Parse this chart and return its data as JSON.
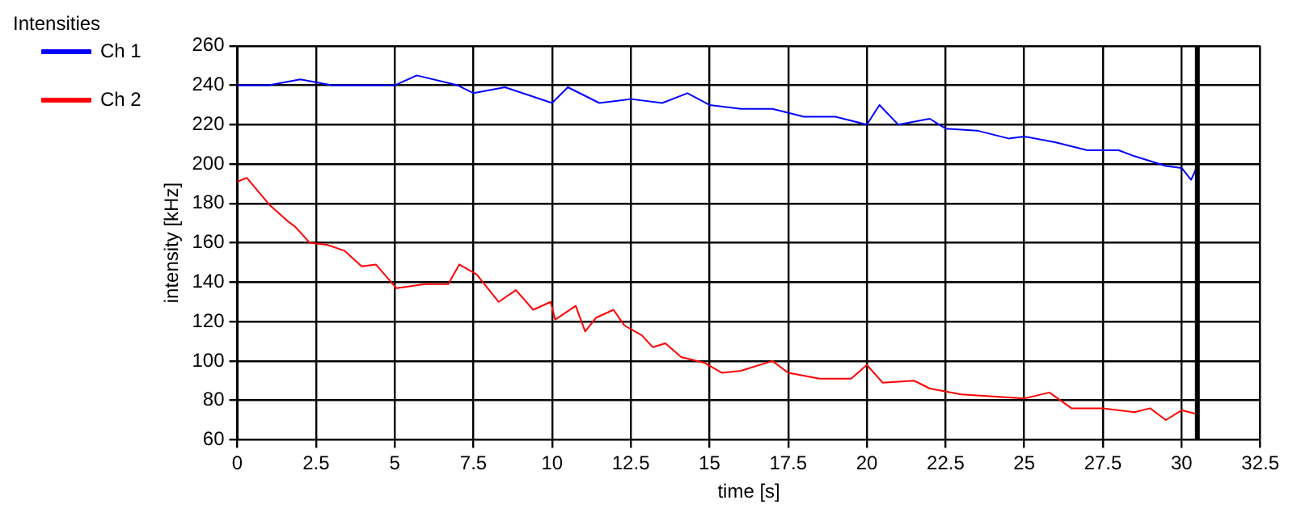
{
  "chart_data": {
    "type": "line",
    "title": "Intensities",
    "xlabel": "time [s]",
    "ylabel": "intensity [kHz]",
    "xlim": [
      0,
      32.5
    ],
    "xticks": [
      0,
      2.5,
      5,
      7.5,
      10,
      12.5,
      15,
      17.5,
      20,
      22.5,
      25,
      27.5,
      30,
      32.5
    ],
    "ylim": [
      60,
      260
    ],
    "yticks": [
      60,
      80,
      100,
      120,
      140,
      160,
      180,
      200,
      220,
      240,
      260
    ],
    "grid": true,
    "legend": "top left",
    "marker": "none",
    "line_style": "solid",
    "ref_lines": [
      {
        "axis": "x",
        "value": 30.5,
        "color": "#000000"
      }
    ],
    "series": [
      {
        "name": "Ch 1",
        "color": "#0000ff",
        "x": [
          0,
          1,
          2,
          3,
          5,
          5.7,
          7,
          7.5,
          8.5,
          10,
          10.5,
          11.5,
          12.5,
          13.5,
          14.3,
          15,
          16,
          17,
          18,
          19,
          20,
          20.4,
          21,
          22,
          22.5,
          23.5,
          24.5,
          25,
          26,
          27,
          28,
          28.5,
          29.5,
          30,
          30.3,
          30.5
        ],
        "values": [
          240,
          240,
          243,
          240,
          240,
          245,
          240,
          236,
          239,
          231,
          239,
          231,
          233,
          231,
          236,
          230,
          228,
          228,
          224,
          224,
          220,
          230,
          220,
          223,
          218,
          217,
          213,
          214,
          211,
          207,
          207,
          204,
          199,
          198,
          192,
          199
        ]
      },
      {
        "name": "Ch 2",
        "color": "#ff0000",
        "x": [
          0,
          0.3,
          1.04,
          1.6,
          1.85,
          2.3,
          2.85,
          3.4,
          3.95,
          4.4,
          5.05,
          5.95,
          6.7,
          7.05,
          7.6,
          8.3,
          8.85,
          9.4,
          9.95,
          10.1,
          10.75,
          11.05,
          11.4,
          11.95,
          12.3,
          12.85,
          13.2,
          13.6,
          14.1,
          14.85,
          15.4,
          16,
          17,
          17.5,
          18.5,
          19.5,
          20,
          20.5,
          21.5,
          22,
          23,
          24,
          25,
          25.8,
          26.5,
          27.5,
          28.5,
          29,
          29.5,
          30,
          30.5
        ],
        "values": [
          191,
          193,
          179,
          171,
          168,
          160,
          159,
          156,
          148,
          149,
          137,
          139,
          139,
          149,
          144,
          130,
          136,
          126,
          130,
          121,
          128,
          115,
          122,
          126,
          118,
          113,
          107,
          109,
          102,
          99,
          94,
          95,
          100,
          94,
          91,
          91,
          98,
          89,
          90,
          86,
          83,
          82,
          81,
          84,
          76,
          76,
          74,
          76,
          70,
          75,
          73
        ]
      }
    ]
  }
}
